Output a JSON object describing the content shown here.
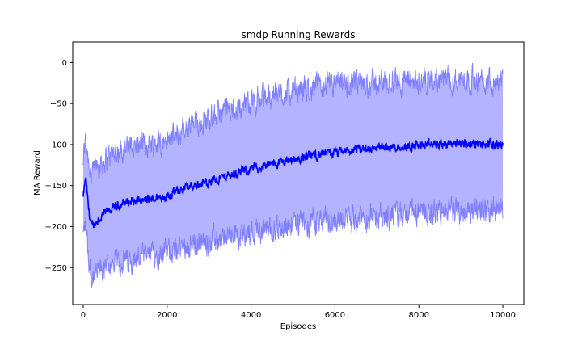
{
  "chart_data": {
    "type": "line",
    "title": "smdp Running Rewards",
    "xlabel": "Episodes",
    "ylabel": "MA Reward",
    "xlim": [
      -250,
      10500
    ],
    "ylim": [
      -295,
      25
    ],
    "xticks": [
      0,
      2000,
      4000,
      6000,
      8000,
      10000
    ],
    "yticks": [
      0,
      -50,
      -100,
      -150,
      -200,
      -250
    ],
    "grid": false,
    "legend": "none",
    "colors": {
      "mean_line": "#0000ff",
      "band_fill": "#b3b3ff",
      "bound_lines": "#7f7fff"
    },
    "series": [
      {
        "x": [
          0,
          60,
          130,
          200,
          300,
          500,
          700,
          1000,
          1500,
          2000,
          2500,
          3000,
          3500,
          4000,
          4500,
          5000,
          5500,
          6000,
          6500,
          7000,
          7500,
          8000,
          8500,
          9000,
          9500,
          10000
        ],
        "values": [
          -165,
          -140,
          -180,
          -200,
          -195,
          -185,
          -178,
          -170,
          -168,
          -162,
          -152,
          -145,
          -137,
          -130,
          -124,
          -118,
          -113,
          -110,
          -107,
          -104,
          -103,
          -101,
          -100,
          -98,
          -100,
          -100
        ]
      },
      {
        "x": [
          0,
          60,
          130,
          200,
          300,
          500,
          700,
          1000,
          1500,
          2000,
          2500,
          3000,
          3500,
          4000,
          4500,
          5000,
          5500,
          6000,
          6500,
          7000,
          7500,
          8000,
          8500,
          9000,
          9500,
          10000
        ],
        "values": [
          -120,
          -90,
          -120,
          -140,
          -125,
          -120,
          -110,
          -105,
          -100,
          -95,
          -80,
          -68,
          -58,
          -48,
          -40,
          -35,
          -30,
          -28,
          -27,
          -25,
          -23,
          -22,
          -21,
          -20,
          -22,
          -22
        ]
      },
      {
        "x": [
          0,
          60,
          130,
          200,
          300,
          500,
          700,
          1000,
          1500,
          2000,
          2500,
          3000,
          3500,
          4000,
          4500,
          5000,
          5500,
          6000,
          6500,
          7000,
          7500,
          8000,
          8500,
          9000,
          9500,
          10000
        ],
        "values": [
          -210,
          -195,
          -240,
          -262,
          -258,
          -252,
          -245,
          -242,
          -236,
          -230,
          -222,
          -218,
          -212,
          -206,
          -204,
          -198,
          -195,
          -192,
          -190,
          -188,
          -186,
          -184,
          -182,
          -180,
          -180,
          -180
        ]
      }
    ]
  }
}
